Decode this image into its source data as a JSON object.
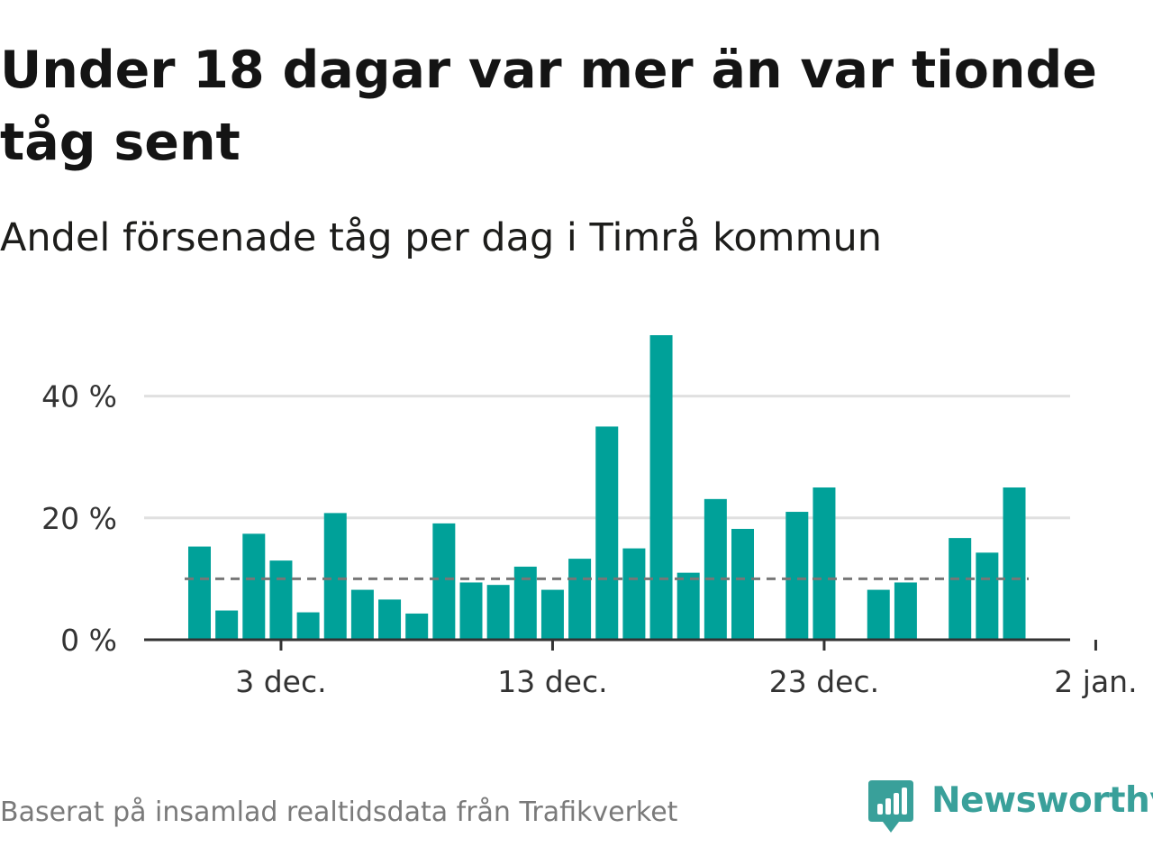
{
  "title": "Under 18 dagar var mer än var tionde tåg sent",
  "subtitle": "Andel försenade tåg per dag i Timrå kommun",
  "footer": "Baserat på insamlad realtidsdata från Trafikverket",
  "brand": {
    "name": "Newsworthy",
    "icon": "newsworthy-bar-chart-bubble-icon",
    "color": "#39a09a"
  },
  "colors": {
    "bar": "#00a199",
    "grid": "#e0e0e0",
    "axis": "#333333",
    "reference": "#777777"
  },
  "chart_data": {
    "type": "bar",
    "x_unit": "date",
    "y_unit": "percent",
    "days": [
      "2023-11-30",
      "2023-12-01",
      "2023-12-02",
      "2023-12-03",
      "2023-12-04",
      "2023-12-05",
      "2023-12-06",
      "2023-12-07",
      "2023-12-08",
      "2023-12-09",
      "2023-12-10",
      "2023-12-11",
      "2023-12-12",
      "2023-12-13",
      "2023-12-14",
      "2023-12-15",
      "2023-12-16",
      "2023-12-17",
      "2023-12-18",
      "2023-12-19",
      "2023-12-20",
      "2023-12-21",
      "2023-12-22",
      "2023-12-23",
      "2023-12-24",
      "2023-12-25",
      "2023-12-26",
      "2023-12-27",
      "2023-12-28",
      "2023-12-29",
      "2023-12-30",
      "2023-12-31",
      "2024-01-01"
    ],
    "values": [
      15.3,
      4.8,
      17.4,
      13.0,
      4.5,
      20.8,
      8.2,
      6.6,
      4.3,
      19.1,
      9.4,
      9.0,
      12.0,
      8.2,
      13.3,
      35.0,
      15.0,
      50.0,
      11.0,
      23.1,
      18.2,
      null,
      21.0,
      25.0,
      null,
      8.2,
      9.4,
      null,
      16.7,
      14.3,
      25.0,
      null,
      null
    ],
    "reference_line": 10,
    "ylim": [
      0,
      50
    ],
    "y_ticks": [
      0,
      20,
      40
    ],
    "y_tick_labels": [
      "0 %",
      "20 %",
      "40 %"
    ],
    "x_tick_days": [
      "2023-12-03",
      "2023-12-13",
      "2023-12-23",
      "2024-01-02"
    ],
    "x_tick_labels": [
      "3 dec.",
      "13 dec.",
      "23 dec.",
      "2 jan."
    ],
    "grid": true,
    "xlabel": "",
    "ylabel": ""
  }
}
